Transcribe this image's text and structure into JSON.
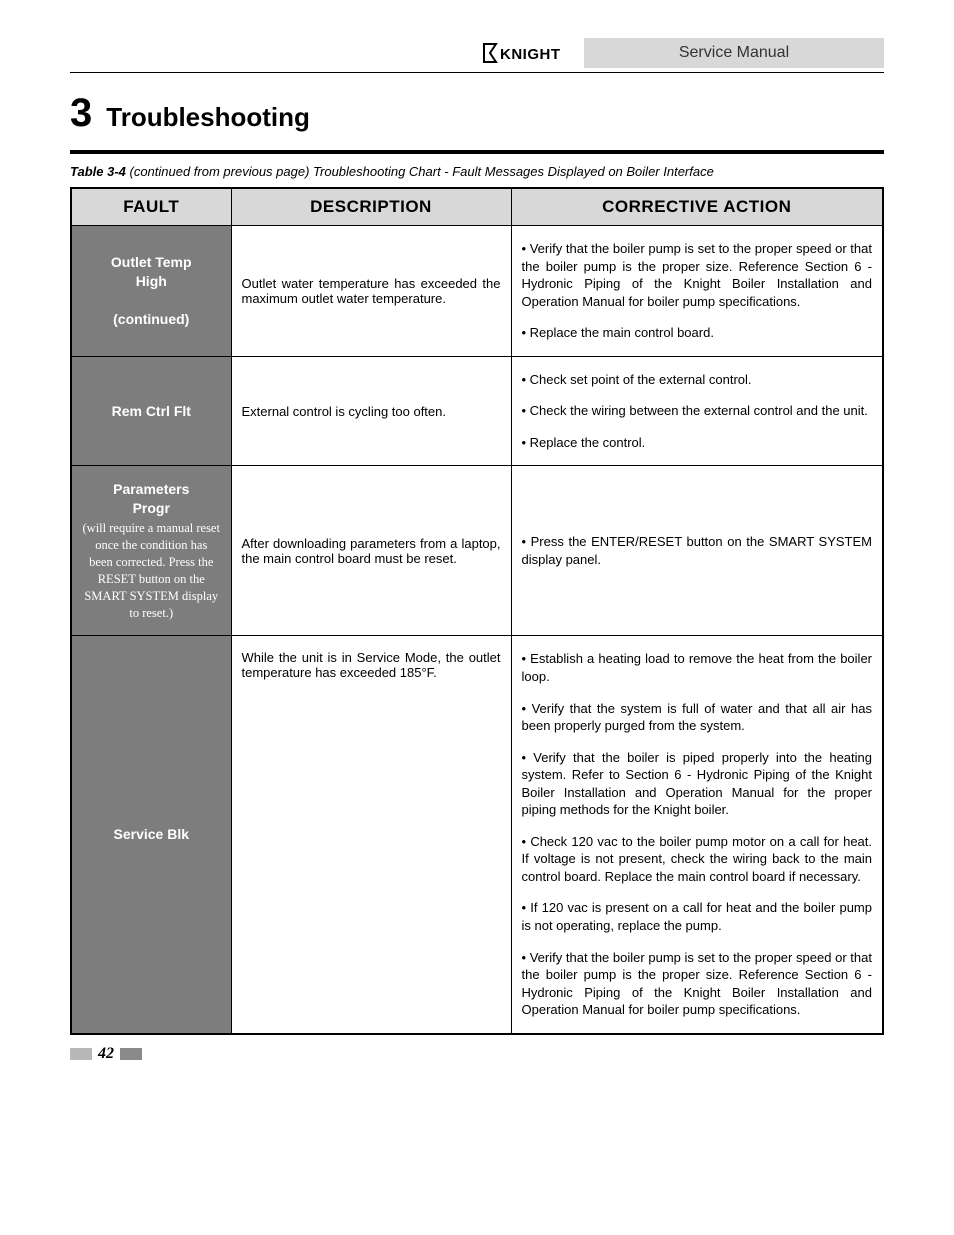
{
  "header": {
    "logo_text": "KNIGHT",
    "service_manual": "Service Manual"
  },
  "section": {
    "number": "3",
    "title": "Troubleshooting"
  },
  "table_caption": {
    "prefix": "Table 3-4",
    "rest": " (continued from previous page) Troubleshooting Chart - Fault Messages Displayed on Boiler Interface"
  },
  "columns": {
    "fault": "FAULT",
    "description": "DESCRIPTION",
    "action": "CORRECTIVE ACTION"
  },
  "rows": [
    {
      "fault_name": "Outlet Temp High (continued)",
      "fault_note": "",
      "description": "Outlet water temperature has exceeded the maximum outlet water temperature.",
      "desc_valign": "middle",
      "actions": [
        "• Verify that the boiler pump is set to the proper speed or that the boiler pump is the proper size.  Reference Section 6 - Hydronic Piping of the Knight  Boiler Installation and Operation Manual for boiler pump specifications.",
        "• Replace the main control board."
      ]
    },
    {
      "fault_name": "Rem Ctrl Flt",
      "fault_note": "",
      "description": "External control is cycling too often.",
      "desc_valign": "middle",
      "actions": [
        "• Check set point of the external control.",
        "• Check the wiring between the external control and the unit.",
        "• Replace the control."
      ]
    },
    {
      "fault_name": "Parameters Progr",
      "fault_note": "(will require a manual reset once the condition has been corrected.  Press the RESET button on the SMART SYSTEM display to reset.)",
      "description": "After downloading parameters from a laptop, the main control board must be reset.",
      "desc_valign": "middle",
      "actions": [
        "• Press the ENTER/RESET button on the SMART SYSTEM display panel."
      ]
    },
    {
      "fault_name": "Service Blk",
      "fault_note": "",
      "description": "While the unit is in Service Mode, the outlet temperature has exceeded 185°F.",
      "desc_valign": "top",
      "actions": [
        "• Establish a heating load to remove the heat from the boiler loop.",
        "• Verify that the system is full of water and that all air has been properly purged from the system.",
        "• Verify that the boiler is piped properly into the heating system.  Refer to Section 6 - Hydronic Piping of the Knight Boiler Installation and Operation Manual for the proper piping methods for the Knight boiler.",
        "• Check 120 vac to the boiler pump motor on a call for heat.  If voltage is not present, check the wiring back to the main control board.  Replace the main control board if necessary.",
        "• If 120 vac is present on a call for heat and the boiler pump is not operating, replace the pump.",
        "• Verify that the boiler pump is set to the proper speed or  that the boiler pump is the proper size.  Reference Section 6 - Hydronic Piping of the Knight Boiler Installation and Operation Manual for boiler pump specifications."
      ]
    }
  ],
  "page_number": "42"
}
